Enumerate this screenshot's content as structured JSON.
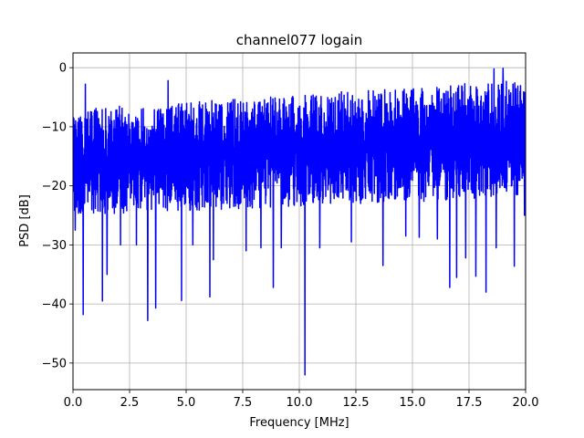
{
  "chart_data": {
    "type": "line",
    "title": "channel077 logain",
    "xlabel": "Frequency [MHz]",
    "ylabel": "PSD [dB]",
    "xlim": [
      0,
      20
    ],
    "ylim": [
      -54.5,
      2.5
    ],
    "xticks": [
      0,
      2.5,
      5,
      7.5,
      10,
      12.5,
      15,
      17.5,
      20
    ],
    "xtick_labels": [
      "0.0",
      "2.5",
      "5.0",
      "7.5",
      "10.0",
      "12.5",
      "15.0",
      "17.5",
      "20.0"
    ],
    "yticks": [
      0,
      -10,
      -20,
      -30,
      -40,
      -50
    ],
    "ytick_labels": [
      "0",
      "−10",
      "−20",
      "−30",
      "−40",
      "−50"
    ],
    "grid": true,
    "series": [
      {
        "color": "#0000ff",
        "points": 2048,
        "band_top_start": -7,
        "band_top_end": -2,
        "band_bottom_start": -25,
        "band_bottom_end": -22,
        "peaks": [
          [
            0.55,
            -2.8
          ],
          [
            4.2,
            -2.2
          ],
          [
            17.8,
            -0.9
          ],
          [
            18.6,
            -0.2
          ],
          [
            19.0,
            -0.1
          ],
          [
            19.95,
            -1.6
          ]
        ],
        "dips": [
          [
            0.1,
            -27.5
          ],
          [
            0.45,
            -41.8
          ],
          [
            1.3,
            -39.5
          ],
          [
            1.5,
            -35
          ],
          [
            2.1,
            -30
          ],
          [
            2.8,
            -30
          ],
          [
            3.3,
            -42.8
          ],
          [
            3.65,
            -40.7
          ],
          [
            4.8,
            -39.4
          ],
          [
            5.3,
            -30
          ],
          [
            6.05,
            -38.8
          ],
          [
            6.2,
            -32.5
          ],
          [
            7.65,
            -31
          ],
          [
            8.3,
            -30.5
          ],
          [
            8.85,
            -37.2
          ],
          [
            9.2,
            -30.5
          ],
          [
            10.25,
            -52
          ],
          [
            10.9,
            -30.5
          ],
          [
            12.3,
            -29.5
          ],
          [
            13.7,
            -33.5
          ],
          [
            14.7,
            -28.5
          ],
          [
            15.3,
            -28.7
          ],
          [
            16.1,
            -29
          ],
          [
            16.65,
            -37.2
          ],
          [
            16.95,
            -35.5
          ],
          [
            17.35,
            -32.2
          ],
          [
            17.8,
            -35.3
          ],
          [
            18.25,
            -38
          ],
          [
            18.7,
            -30.5
          ],
          [
            19.5,
            -33.6
          ],
          [
            19.95,
            -25
          ]
        ]
      }
    ]
  }
}
